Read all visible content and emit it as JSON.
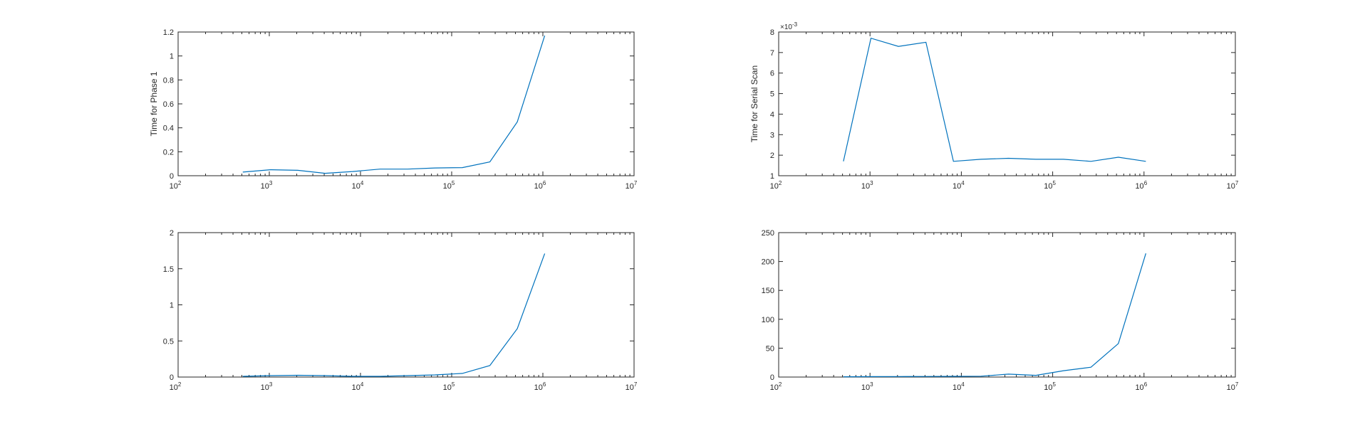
{
  "chart_data": [
    {
      "type": "line",
      "id": "top-left",
      "xscale": "log",
      "xlim": [
        100,
        10000000
      ],
      "ylim": [
        0,
        1.2
      ],
      "yticks": [
        0,
        0.2,
        0.4,
        0.6,
        0.8,
        1,
        1.2
      ],
      "yticklabels": [
        "0",
        "0.2",
        "0.4",
        "0.6",
        "0.8",
        "1",
        "1.2"
      ],
      "ylabel": "Time for Phase 1",
      "xlabel": "",
      "multiplier": "",
      "grid": false,
      "color": "#0072bd",
      "x": [
        512,
        1024,
        2048,
        4096,
        8192,
        16384,
        32768,
        65536,
        131072,
        262144,
        524288,
        1048576
      ],
      "y": [
        0.03,
        0.05,
        0.045,
        0.02,
        0.035,
        0.055,
        0.055,
        0.065,
        0.068,
        0.115,
        0.45,
        1.17
      ]
    },
    {
      "type": "line",
      "id": "top-right",
      "xscale": "log",
      "xlim": [
        100,
        10000000
      ],
      "ylim": [
        1,
        8
      ],
      "yticks": [
        1,
        2,
        3,
        4,
        5,
        6,
        7,
        8
      ],
      "yticklabels": [
        "1",
        "2",
        "3",
        "4",
        "5",
        "6",
        "7",
        "8"
      ],
      "ylabel": "Time for Serial Scan",
      "xlabel": "",
      "multiplier": "×10",
      "multiplier_exp": "-3",
      "grid": false,
      "color": "#0072bd",
      "x": [
        512,
        1024,
        2048,
        4096,
        8192,
        16384,
        32768,
        65536,
        131072,
        262144,
        524288,
        1048576
      ],
      "y": [
        1.7,
        7.7,
        7.3,
        7.5,
        1.7,
        1.8,
        1.85,
        1.8,
        1.8,
        1.7,
        1.9,
        1.7
      ]
    },
    {
      "type": "line",
      "id": "bottom-left",
      "xscale": "log",
      "xlim": [
        100,
        10000000
      ],
      "ylim": [
        0,
        2
      ],
      "yticks": [
        0,
        0.5,
        1,
        1.5,
        2
      ],
      "yticklabels": [
        "0",
        "0.5",
        "1",
        "1.5",
        "2"
      ],
      "ylabel": "",
      "xlabel": "",
      "multiplier": "",
      "grid": false,
      "color": "#0072bd",
      "x": [
        512,
        1024,
        2048,
        4096,
        8192,
        16384,
        32768,
        65536,
        131072,
        262144,
        524288,
        1048576
      ],
      "y": [
        0.01,
        0.02,
        0.025,
        0.02,
        0.01,
        0.01,
        0.02,
        0.03,
        0.05,
        0.16,
        0.67,
        1.71
      ]
    },
    {
      "type": "line",
      "id": "bottom-right",
      "xscale": "log",
      "xlim": [
        100,
        10000000
      ],
      "ylim": [
        0,
        250
      ],
      "yticks": [
        0,
        50,
        100,
        150,
        200,
        250
      ],
      "yticklabels": [
        "0",
        "50",
        "100",
        "150",
        "200",
        "250"
      ],
      "ylabel": "",
      "xlabel": "",
      "multiplier": "",
      "grid": false,
      "color": "#0072bd",
      "x": [
        512,
        1024,
        2048,
        4096,
        8192,
        16384,
        32768,
        65536,
        131072,
        262144,
        524288,
        1048576
      ],
      "y": [
        0.5,
        0.8,
        0.9,
        1.0,
        1.2,
        1.5,
        5,
        3,
        11,
        17,
        58,
        214
      ]
    }
  ],
  "xtick_exponents": [
    "2",
    "3",
    "4",
    "5",
    "6",
    "7"
  ],
  "xtick_base": "10"
}
